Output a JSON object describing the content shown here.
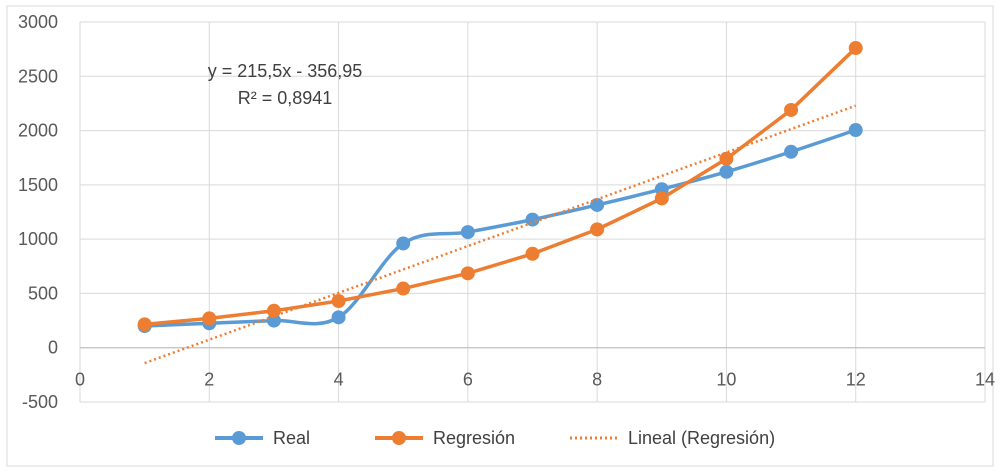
{
  "chart_data": {
    "type": "line",
    "title": "",
    "xlabel": "",
    "ylabel": "",
    "xlim": [
      0,
      14
    ],
    "ylim": [
      -500,
      3000
    ],
    "x_ticks": [
      0,
      2,
      4,
      6,
      8,
      10,
      12,
      14
    ],
    "y_ticks": [
      -500,
      0,
      500,
      1000,
      1500,
      2000,
      2500,
      3000
    ],
    "grid": true,
    "legend_position": "bottom",
    "series": [
      {
        "name": "Real",
        "color": "#5B9BD5",
        "style": "smooth-line-markers",
        "points": [
          {
            "x": 1,
            "y": 200
          },
          {
            "x": 2,
            "y": 225
          },
          {
            "x": 3,
            "y": 250
          },
          {
            "x": 4,
            "y": 280
          },
          {
            "x": 5,
            "y": 960
          },
          {
            "x": 6,
            "y": 1065
          },
          {
            "x": 7,
            "y": 1180
          },
          {
            "x": 8,
            "y": 1315
          },
          {
            "x": 9,
            "y": 1460
          },
          {
            "x": 10,
            "y": 1620
          },
          {
            "x": 11,
            "y": 1805
          },
          {
            "x": 12,
            "y": 2005
          }
        ]
      },
      {
        "name": "Regresión",
        "color": "#ED7D31",
        "style": "line-markers",
        "points": [
          {
            "x": 1,
            "y": 215
          },
          {
            "x": 2,
            "y": 270
          },
          {
            "x": 3,
            "y": 340
          },
          {
            "x": 4,
            "y": 430
          },
          {
            "x": 5,
            "y": 545
          },
          {
            "x": 6,
            "y": 685
          },
          {
            "x": 7,
            "y": 865
          },
          {
            "x": 8,
            "y": 1090
          },
          {
            "x": 9,
            "y": 1375
          },
          {
            "x": 10,
            "y": 1740
          },
          {
            "x": 11,
            "y": 2190
          },
          {
            "x": 12,
            "y": 2760
          }
        ]
      },
      {
        "name": "Lineal (Regresión)",
        "color": "#ED7D31",
        "style": "dotted-trendline",
        "slope": 215.5,
        "intercept": -356.95,
        "x_range": [
          1,
          12
        ]
      }
    ],
    "annotations": [
      {
        "text": "y = 215,5x - 356,95"
      },
      {
        "text": "R² = 0,8941"
      }
    ]
  }
}
